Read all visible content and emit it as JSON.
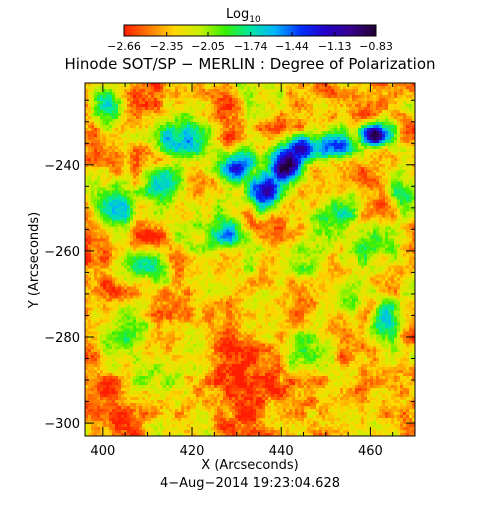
{
  "chart_data": {
    "type": "heatmap",
    "title": "Hinode SOT/SP − MERLIN : Degree of Polarization",
    "subtitle": "4−Aug−2014 19:23:04.628",
    "xlabel": "X (Arcseconds)",
    "ylabel": "Y (Arcseconds)",
    "xlim": [
      396,
      470
    ],
    "ylim": [
      -303,
      -221
    ],
    "x_ticks": [
      400,
      420,
      440,
      460
    ],
    "x_tick_labels": [
      "400",
      "420",
      "440",
      "460"
    ],
    "y_ticks": [
      -240,
      -260,
      -280,
      -300
    ],
    "y_tick_labels": [
      "−240",
      "−260",
      "−280",
      "−300"
    ],
    "colorbar": {
      "label": "Log",
      "label_sub": "10",
      "colormap": "rainbow",
      "range": [
        -2.66,
        -0.83
      ],
      "colors": [
        "#ff1e00",
        "#ff7a00",
        "#ffd800",
        "#c8f000",
        "#39f000",
        "#00e8a0",
        "#00b4ff",
        "#0030ff",
        "#2400c8",
        "#38008c",
        "#200030"
      ],
      "tick_values": [
        -2.66,
        -2.35,
        -2.05,
        -1.74,
        -1.44,
        -1.13,
        -0.83
      ],
      "tick_labels": [
        "−2.66",
        "−2.35",
        "−2.05",
        "−1.74",
        "−1.44",
        "−1.13",
        "−0.83"
      ]
    },
    "features": [
      {
        "x": 461,
        "y": -233,
        "value": -0.9,
        "sx": 2.5,
        "sy": 2.0
      },
      {
        "x": 441,
        "y": -240,
        "value": -0.95,
        "sx": 2.8,
        "sy": 3.5
      },
      {
        "x": 436,
        "y": -246,
        "value": -1.1,
        "sx": 3.0,
        "sy": 3.5
      },
      {
        "x": 445,
        "y": -236,
        "value": -1.2,
        "sx": 3.5,
        "sy": 2.5
      },
      {
        "x": 452,
        "y": -236,
        "value": -1.3,
        "sx": 4.0,
        "sy": 2.5
      },
      {
        "x": 430,
        "y": -241,
        "value": -1.4,
        "sx": 3.0,
        "sy": 3.0
      },
      {
        "x": 428,
        "y": -256,
        "value": -1.6,
        "sx": 3.5,
        "sy": 3.0
      },
      {
        "x": 418,
        "y": -234,
        "value": -1.6,
        "sx": 5.0,
        "sy": 3.0
      },
      {
        "x": 401,
        "y": -226,
        "value": -1.8,
        "sx": 3.0,
        "sy": 3.5
      },
      {
        "x": 402,
        "y": -251,
        "value": -1.7,
        "sx": 3.5,
        "sy": 5.0
      },
      {
        "x": 414,
        "y": -245,
        "value": -1.8,
        "sx": 4.0,
        "sy": 4.0
      },
      {
        "x": 451,
        "y": -252,
        "value": -1.8,
        "sx": 5.0,
        "sy": 4.0
      },
      {
        "x": 459,
        "y": -258,
        "value": -1.9,
        "sx": 5.0,
        "sy": 4.0
      },
      {
        "x": 467,
        "y": -247,
        "value": -1.8,
        "sx": 2.5,
        "sy": 5.0
      },
      {
        "x": 463,
        "y": -276,
        "value": -1.8,
        "sx": 2.5,
        "sy": 4.0
      },
      {
        "x": 456,
        "y": -271,
        "value": -2.0,
        "sx": 4.0,
        "sy": 4.0
      },
      {
        "x": 409,
        "y": -264,
        "value": -1.9,
        "sx": 4.5,
        "sy": 3.5
      },
      {
        "x": 446,
        "y": -283,
        "value": -2.0,
        "sx": 4.0,
        "sy": 4.0
      },
      {
        "x": 406,
        "y": -278,
        "value": -2.1,
        "sx": 5.0,
        "sy": 5.0
      },
      {
        "x": 422,
        "y": -268,
        "value": -2.2,
        "sx": 6.0,
        "sy": 5.0
      },
      {
        "x": 444,
        "y": -262,
        "value": -2.0,
        "sx": 4.0,
        "sy": 4.0
      },
      {
        "x": 461,
        "y": -296,
        "value": -2.1,
        "sx": 4.0,
        "sy": 3.5
      }
    ]
  }
}
